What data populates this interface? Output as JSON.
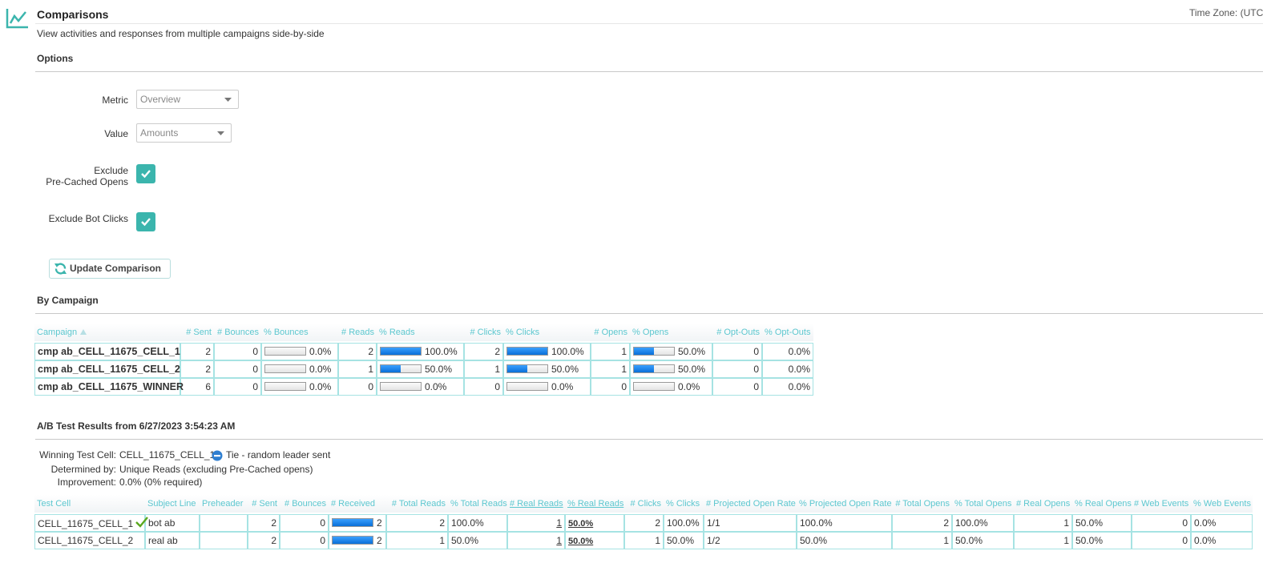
{
  "header": {
    "title": "Comparisons",
    "subtitle": "View activities and responses from multiple campaigns side-by-side",
    "timezone": "Time Zone: (UTC"
  },
  "options": {
    "heading": "Options",
    "metric_label": "Metric",
    "metric_value": "Overview",
    "value_label": "Value",
    "value_value": "Amounts",
    "precached_label": [
      "Exclude",
      "Pre-Cached Opens"
    ],
    "bot_label": "Exclude Bot Clicks",
    "button": "Update Comparison"
  },
  "by_campaign": {
    "heading": "By Campaign",
    "columns": [
      "Campaign",
      "# Sent",
      "# Bounces",
      "% Bounces",
      "# Reads",
      "% Reads",
      "# Clicks",
      "% Clicks",
      "# Opens",
      "% Opens",
      "# Opt-Outs",
      "% Opt-Outs"
    ],
    "rows": [
      [
        "cmp ab_CELL_11675_CELL_1",
        2,
        0,
        {
          "value": 0,
          "label": "0.0%"
        },
        2,
        {
          "value": 100,
          "label": "100.0%"
        },
        2,
        {
          "value": 100,
          "label": "100.0%"
        },
        1,
        {
          "value": 50,
          "label": "50.0%"
        },
        0,
        "0.0%"
      ],
      [
        "cmp ab_CELL_11675_CELL_2",
        2,
        0,
        {
          "value": 0,
          "label": "0.0%"
        },
        1,
        {
          "value": 50,
          "label": "50.0%"
        },
        1,
        {
          "value": 50,
          "label": "50.0%"
        },
        1,
        {
          "value": 50,
          "label": "50.0%"
        },
        0,
        "0.0%"
      ],
      [
        "cmp ab_CELL_11675_WINNER",
        6,
        0,
        {
          "value": 0,
          "label": "0.0%"
        },
        0,
        {
          "value": 0,
          "label": "0.0%"
        },
        0,
        {
          "value": 0,
          "label": "0.0%"
        },
        0,
        {
          "value": 0,
          "label": "0.0%"
        },
        0,
        "0.0%"
      ]
    ]
  },
  "ab_test": {
    "heading": "A/B Test Results from 6/27/2023 3:54:23 AM",
    "winning_label": "Winning Test Cell:",
    "winning_cell": "CELL_11675_CELL_1",
    "winning_note": "Tie - random leader sent",
    "determined_label": "Determined by:",
    "determined_value": "Unique Reads (excluding Pre-Cached opens)",
    "improvement_label": "Improvement:",
    "improvement_value": "0.0% (0% required)",
    "columns": [
      "Test Cell",
      "Subject Line",
      "Preheader",
      "# Sent",
      "# Bounces",
      "# Received",
      "# Total Reads",
      "% Total Reads",
      "# Real Reads",
      "% Real Reads",
      "# Clicks",
      "% Clicks",
      "# Projected Open Rate",
      "% Projected Open Rate",
      "# Total Opens",
      "% Total Opens",
      "# Real Opens",
      "% Real Opens",
      "# Web Events",
      "% Web Events"
    ],
    "rows": [
      [
        "CELL_11675_CELL_1",
        "bot ab",
        null,
        2,
        0,
        2,
        2,
        "100.0%",
        1,
        "50.0%",
        2,
        "100.0%",
        "1/1",
        "100.0%",
        2,
        "100.0%",
        1,
        "50.0%",
        0,
        "0.0%"
      ],
      [
        "CELL_11675_CELL_2",
        "real ab",
        null,
        2,
        0,
        2,
        1,
        "50.0%",
        1,
        "50.0%",
        1,
        "50.0%",
        "1/2",
        "50.0%",
        1,
        "50.0%",
        1,
        "50.0%",
        0,
        "0.0%"
      ]
    ]
  }
}
